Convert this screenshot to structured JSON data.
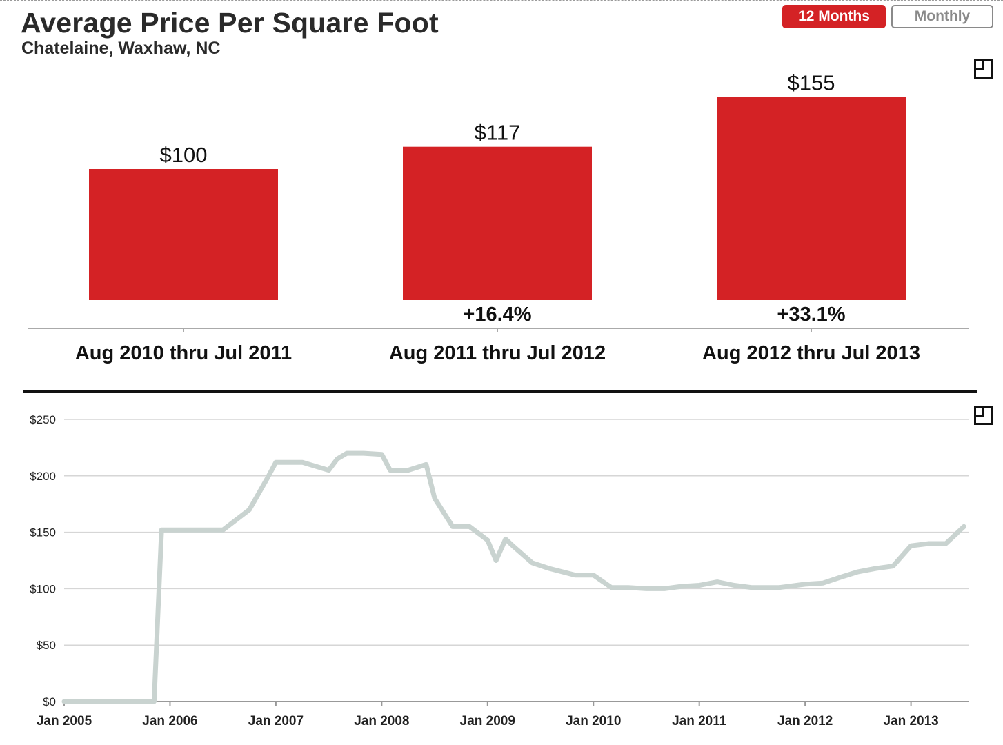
{
  "header": {
    "title": "Average Price Per Square Foot",
    "subtitle": "Chatelaine, Waxhaw, NC"
  },
  "toggle": {
    "active_label": "12 Months",
    "inactive_label": "Monthly"
  },
  "colors": {
    "accent": "#d42225",
    "line": "#c9d3d0",
    "grid": "#d6d6d6",
    "text": "#222222"
  },
  "icons": {
    "expand": "expand-icon"
  },
  "chart_data": [
    {
      "type": "bar",
      "categories": [
        "Aug 2010 thru Jul 2011",
        "Aug 2011 thru Jul 2012",
        "Aug 2012 thru Jul 2013"
      ],
      "values": [
        100,
        117,
        155
      ],
      "value_labels": [
        "$100",
        "$117",
        "$155"
      ],
      "change_labels": [
        "",
        "+16.4%",
        "+33.1%"
      ],
      "title": "Average Price Per Square Foot",
      "ylim": [
        0,
        155
      ]
    },
    {
      "type": "line",
      "x": [
        2005.0,
        2005.25,
        2005.5,
        2005.75,
        2005.85,
        2005.92,
        2006.0,
        2006.25,
        2006.5,
        2006.75,
        2006.92,
        2007.0,
        2007.08,
        2007.25,
        2007.5,
        2007.58,
        2007.67,
        2007.83,
        2008.0,
        2008.08,
        2008.25,
        2008.42,
        2008.5,
        2008.67,
        2008.75,
        2008.83,
        2009.0,
        2009.08,
        2009.17,
        2009.25,
        2009.42,
        2009.58,
        2009.83,
        2010.0,
        2010.17,
        2010.33,
        2010.5,
        2010.67,
        2010.83,
        2011.0,
        2011.17,
        2011.33,
        2011.5,
        2011.75,
        2012.0,
        2012.17,
        2012.33,
        2012.5,
        2012.67,
        2012.83,
        2013.0,
        2013.17,
        2013.33,
        2013.42,
        2013.5
      ],
      "series": [
        {
          "name": "Average Price Per Square Foot",
          "values": [
            0,
            0,
            0,
            0,
            0,
            152,
            152,
            152,
            152,
            170,
            198,
            212,
            212,
            212,
            205,
            215,
            220,
            220,
            219,
            205,
            205,
            210,
            180,
            155,
            155,
            155,
            143,
            125,
            144,
            137,
            123,
            118,
            112,
            112,
            101,
            101,
            100,
            100,
            102,
            103,
            106,
            103,
            101,
            101,
            104,
            105,
            110,
            115,
            118,
            120,
            138,
            140,
            140,
            148,
            155
          ]
        }
      ],
      "x_ticks": [
        "Jan 2005",
        "Jan 2006",
        "Jan 2007",
        "Jan 2008",
        "Jan 2009",
        "Jan 2010",
        "Jan 2011",
        "Jan 2012",
        "Jan 2013"
      ],
      "y_ticks": [
        "$0",
        "$50",
        "$100",
        "$150",
        "$200",
        "$250"
      ],
      "y_tick_values": [
        0,
        50,
        100,
        150,
        200,
        250
      ],
      "xlim": [
        2005.0,
        2013.55
      ],
      "ylim": [
        0,
        250
      ],
      "grid": true
    }
  ]
}
